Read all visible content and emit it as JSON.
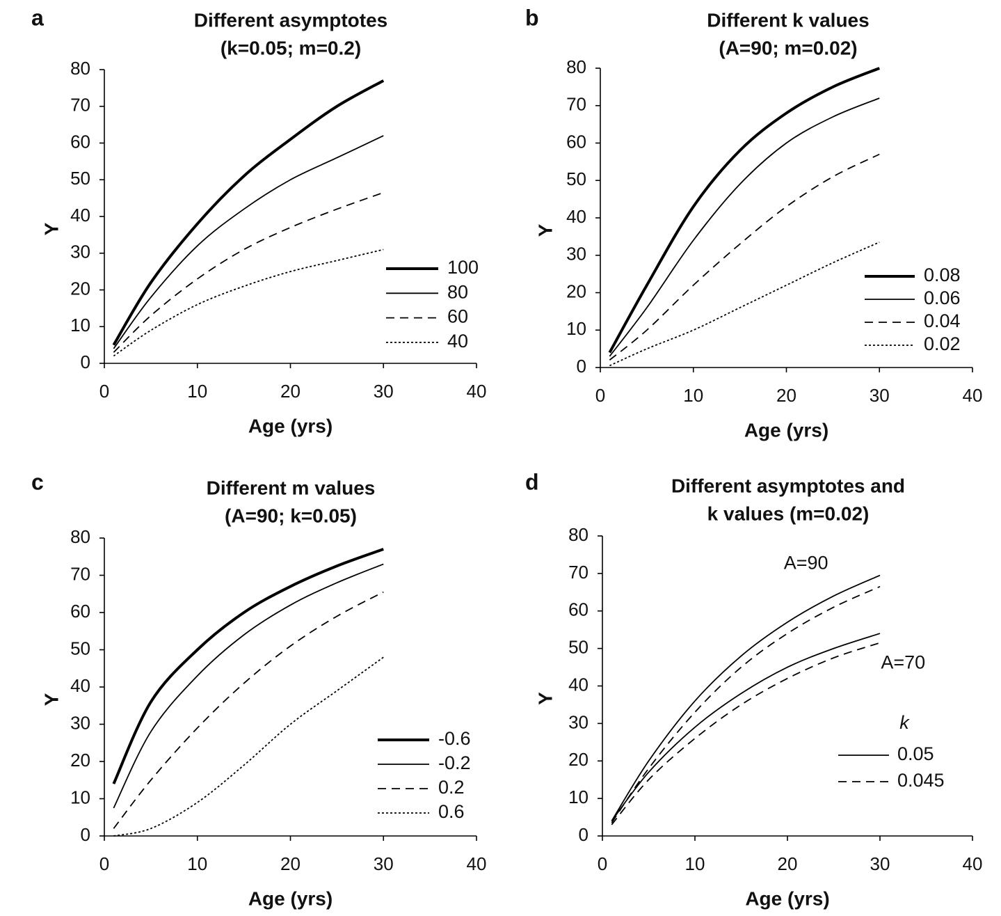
{
  "chart_data": [
    {
      "type": "line",
      "panel": "a",
      "title": [
        "Different asymptotes",
        "(k=0.05; m=0.2)"
      ],
      "x_label": "Age (yrs)",
      "y_label": "Y",
      "xlim": [
        0,
        40
      ],
      "xticks": [
        0,
        10,
        20,
        30,
        40
      ],
      "ylim": [
        0,
        80
      ],
      "yticks": [
        0,
        10,
        20,
        30,
        40,
        50,
        60,
        70,
        80
      ],
      "legend": "lower right",
      "x": [
        1,
        5,
        10,
        15,
        20,
        25,
        30
      ],
      "series": [
        {
          "name": "100",
          "color": "#000000",
          "width": 4,
          "dash": "solid",
          "values": [
            5,
            22,
            38,
            51,
            61,
            70,
            77
          ]
        },
        {
          "name": "80",
          "color": "#000000",
          "width": 1.8,
          "dash": "solid",
          "values": [
            4,
            18,
            32,
            42,
            50,
            56,
            62
          ]
        },
        {
          "name": "60",
          "color": "#000000",
          "width": 1.8,
          "dash": "dashed",
          "values": [
            3,
            13,
            23,
            31,
            37,
            42,
            46.5
          ]
        },
        {
          "name": "40",
          "color": "#000000",
          "width": 1.8,
          "dash": "dotted",
          "values": [
            2,
            9,
            16,
            21,
            25,
            28,
            31
          ]
        }
      ]
    },
    {
      "type": "line",
      "panel": "b",
      "title": [
        "Different k values",
        "(A=90; m=0.02)"
      ],
      "x_label": "Age (yrs)",
      "y_label": "Y",
      "xlim": [
        0,
        40
      ],
      "xticks": [
        0,
        10,
        20,
        30,
        40
      ],
      "ylim": [
        0,
        80
      ],
      "yticks": [
        0,
        10,
        20,
        30,
        40,
        50,
        60,
        70,
        80
      ],
      "legend": "lower right",
      "x": [
        1,
        5,
        10,
        15,
        20,
        25,
        30
      ],
      "series": [
        {
          "name": "0.08",
          "color": "#000000",
          "width": 4,
          "dash": "solid",
          "values": [
            4,
            22,
            43,
            58,
            68,
            75,
            80
          ]
        },
        {
          "name": "0.06",
          "color": "#000000",
          "width": 1.8,
          "dash": "solid",
          "values": [
            3,
            16,
            34,
            49,
            60,
            67,
            72
          ]
        },
        {
          "name": "0.04",
          "color": "#000000",
          "width": 1.8,
          "dash": "dashed",
          "values": [
            2,
            10,
            22,
            33,
            43,
            51,
            57
          ]
        },
        {
          "name": "0.02",
          "color": "#000000",
          "width": 1.8,
          "dash": "dotted",
          "values": [
            0.5,
            5,
            10,
            16,
            22,
            28,
            33.5
          ]
        }
      ]
    },
    {
      "type": "line",
      "panel": "c",
      "title": [
        "Different m values",
        "(A=90; k=0.05)"
      ],
      "x_label": "Age (yrs)",
      "y_label": "Y",
      "xlim": [
        0,
        40
      ],
      "xticks": [
        0,
        10,
        20,
        30,
        40
      ],
      "ylim": [
        0,
        80
      ],
      "yticks": [
        0,
        10,
        20,
        30,
        40,
        50,
        60,
        70,
        80
      ],
      "legend": "lower right",
      "x": [
        1,
        5,
        10,
        15,
        20,
        25,
        30
      ],
      "series": [
        {
          "name": "-0.6",
          "color": "#000000",
          "width": 4,
          "dash": "solid",
          "values": [
            14,
            36,
            50,
            60,
            67,
            72.5,
            77
          ]
        },
        {
          "name": "-0.2",
          "color": "#000000",
          "width": 1.8,
          "dash": "solid",
          "values": [
            7.5,
            28,
            43,
            54,
            62,
            68,
            73
          ]
        },
        {
          "name": "0.2",
          "color": "#000000",
          "width": 1.8,
          "dash": "dashed",
          "values": [
            2,
            15,
            29,
            41,
            51,
            59,
            65.5
          ]
        },
        {
          "name": "0.6",
          "color": "#000000",
          "width": 1.8,
          "dash": "dotted",
          "values": [
            0,
            2,
            9,
            19,
            30,
            39,
            48
          ]
        }
      ]
    },
    {
      "type": "line",
      "panel": "d",
      "title": [
        "Different asymptotes and",
        "k values (m=0.02)"
      ],
      "x_label": "Age (yrs)",
      "y_label": "Y",
      "xlim": [
        0,
        40
      ],
      "xticks": [
        0,
        10,
        20,
        30,
        40
      ],
      "ylim": [
        0,
        80
      ],
      "yticks": [
        0,
        10,
        20,
        30,
        40,
        50,
        60,
        70,
        80
      ],
      "legend_title": "k",
      "legend_entries": [
        {
          "label": "0.05",
          "dash": "solid"
        },
        {
          "label": "0.045",
          "dash": "dashed"
        }
      ],
      "annotations": [
        {
          "text": "A=90",
          "x": 22,
          "y": 72.5
        },
        {
          "text": "A=70",
          "x": 32.5,
          "y": 46
        }
      ],
      "x": [
        1,
        5,
        10,
        15,
        20,
        25,
        30
      ],
      "series": [
        {
          "color": "#000000",
          "width": 1.8,
          "dash": "solid",
          "values": [
            4,
            20,
            36,
            48,
            57,
            64,
            69.5
          ]
        },
        {
          "color": "#000000",
          "width": 1.8,
          "dash": "dashed",
          "values": [
            3.5,
            18,
            33,
            45,
            54,
            61,
            66.5
          ]
        },
        {
          "color": "#000000",
          "width": 1.8,
          "dash": "solid",
          "values": [
            4,
            17,
            29,
            38,
            45,
            50,
            54
          ]
        },
        {
          "color": "#000000",
          "width": 1.8,
          "dash": "dashed",
          "values": [
            3,
            15,
            26,
            35,
            42,
            47.5,
            51.5
          ]
        }
      ]
    }
  ]
}
